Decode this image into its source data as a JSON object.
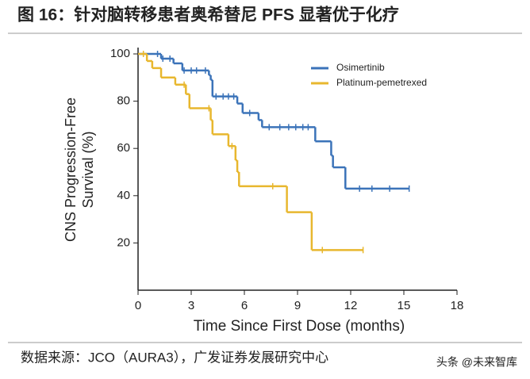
{
  "header": {
    "title": "图 16：针对脑转移患者奥希替尼 PFS 显著优于化疗"
  },
  "chart_data": {
    "type": "step",
    "xlabel": "Time Since First Dose (months)",
    "ylabel": [
      "CNS Progression-Free",
      "Survival (%)"
    ],
    "xlim": [
      0,
      18
    ],
    "xticks": [
      0,
      3,
      6,
      9,
      12,
      15,
      18
    ],
    "ylim": [
      0,
      100
    ],
    "yticks": [
      20,
      40,
      60,
      80,
      100
    ],
    "legend": "top-right",
    "series": [
      {
        "name": "Osimertinib",
        "color": "#3b73b9",
        "x": [
          0,
          1.3,
          2.0,
          2.5,
          4.0,
          4.1,
          4.2,
          5.6,
          5.9,
          6.8,
          7.0,
          10.0,
          10.9,
          11.0,
          11.7,
          15.3
        ],
        "values": [
          100,
          98,
          96,
          93,
          91,
          89,
          82,
          79,
          75,
          72,
          69,
          63,
          57,
          52,
          43,
          43
        ],
        "censored_x": [
          1.1,
          1.4,
          1.8,
          2.6,
          3.0,
          3.3,
          3.8,
          4.4,
          4.8,
          5.1,
          5.4,
          6.3,
          7.4,
          8.0,
          8.5,
          8.9,
          9.3,
          9.6,
          12.5,
          13.2,
          14.2,
          15.3
        ]
      },
      {
        "name": "Platinum-pemetrexed",
        "color": "#e8b72e",
        "x": [
          0,
          0.5,
          0.8,
          1.3,
          2.1,
          2.7,
          2.9,
          4.1,
          4.2,
          5.1,
          5.5,
          5.6,
          5.7,
          8.4,
          9.8,
          12.7
        ],
        "values": [
          100,
          97,
          94,
          90,
          87,
          83,
          77,
          72,
          66,
          61,
          55,
          50,
          44,
          33,
          17,
          17
        ],
        "censored_x": [
          0.3,
          2.6,
          4.0,
          5.3,
          7.6,
          10.4,
          12.7
        ]
      }
    ]
  },
  "footer": {
    "source": "数据来源：JCO（AURA3），广发证券发展研究中心",
    "watermark": "头条 @未来智库"
  }
}
